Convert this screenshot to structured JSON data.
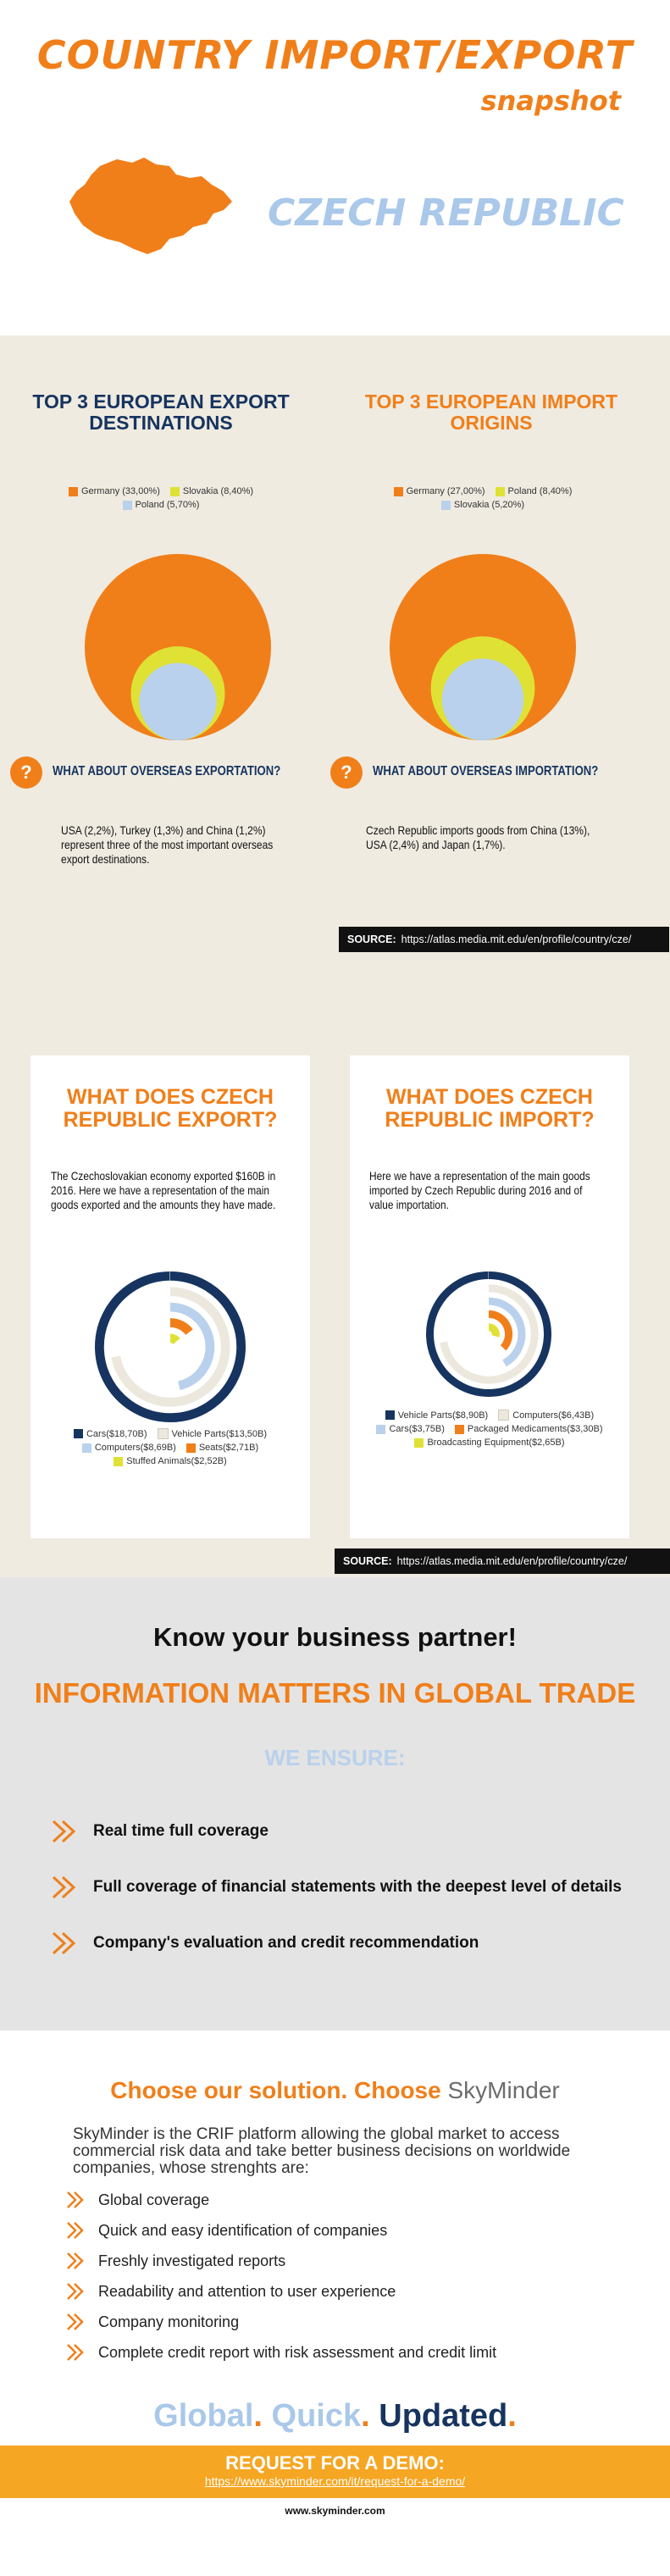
{
  "header": {
    "title_line1": "COUNTRY IMPORT/EXPORT",
    "title_line2": "snapshot",
    "country": "CZECH REPUBLIC"
  },
  "colors": {
    "orange": "#f07f1a",
    "navy": "#16345f",
    "light_blue": "#a9c8ea",
    "yellow": "#dfe234",
    "beige": "#efebe1",
    "grey": "#e4e4e4"
  },
  "export_destinations": {
    "title": "TOP 3 EUROPEAN EXPORT DESTINATIONS",
    "legend": [
      {
        "label": "Germany (33,00%)",
        "value": 33.0,
        "color": "#f07f1a"
      },
      {
        "label": "Slovakia (8,40%)",
        "value": 8.4,
        "color": "#dfe234"
      },
      {
        "label": "Poland (5,70%)",
        "value": 5.7,
        "color": "#b9d1ec"
      }
    ]
  },
  "import_origins": {
    "title": "TOP 3 EUROPEAN IMPORT ORIGINS",
    "legend": [
      {
        "label": "Germany (27,00%)",
        "value": 27.0,
        "color": "#f07f1a"
      },
      {
        "label": "Poland (8,40%)",
        "value": 8.4,
        "color": "#dfe234"
      },
      {
        "label": "Slovakia (5,20%)",
        "value": 5.2,
        "color": "#b9d1ec"
      }
    ]
  },
  "overseas_export": {
    "question": "WHAT ABOUT OVERSEAS EXPORTATION?",
    "text": "USA (2,2%), Turkey (1,3%) and China (1,2%) represent three of the most important overseas export destinations."
  },
  "overseas_import": {
    "question": "WHAT ABOUT OVERSEAS IMPORTATION?",
    "text": "Czech Republic imports goods from China (13%), USA (2,4%) and Japan (1,7%)."
  },
  "source": {
    "label": "SOURCE:",
    "url": "https://atlas.media.mit.edu/en/profile/country/cze/"
  },
  "export_card": {
    "title": "WHAT DOES CZECH REPUBLIC EXPORT?",
    "text": "The Czechoslovakian economy exported $160B in 2016. Here we have a representation of the main goods exported and the amounts they have made.",
    "legend": [
      {
        "label": "Cars($18,70B)",
        "value": 18.7,
        "color": "#16345f"
      },
      {
        "label": "Vehicle Parts($13,50B)",
        "value": 13.5,
        "color": "#ece8de"
      },
      {
        "label": "Computers($8,69B)",
        "value": 8.69,
        "color": "#b9d1ec"
      },
      {
        "label": "Seats($2,71B)",
        "value": 2.71,
        "color": "#f07f1a"
      },
      {
        "label": "Stuffed Animals($2,52B)",
        "value": 2.52,
        "color": "#dfe234"
      }
    ]
  },
  "import_card": {
    "title": "WHAT DOES CZECH REPUBLIC IMPORT?",
    "text": "Here we have a representation of the main goods imported by Czech Republic during 2016 and of value importation.",
    "legend": [
      {
        "label": "Vehicle Parts($8,90B)",
        "value": 8.9,
        "color": "#16345f"
      },
      {
        "label": "Computers($6,43B)",
        "value": 6.43,
        "color": "#ece8de"
      },
      {
        "label": "Cars($3,75B)",
        "value": 3.75,
        "color": "#b9d1ec"
      },
      {
        "label": "Packaged Medicaments($3,30B)",
        "value": 3.3,
        "color": "#f07f1a"
      },
      {
        "label": "Broadcasting Equipment($2,65B)",
        "value": 2.65,
        "color": "#dfe234"
      }
    ]
  },
  "partner": {
    "heading": "Know your business partner!",
    "subheading": "INFORMATION MATTERS IN GLOBAL TRADE",
    "ensure_title": "WE ENSURE:",
    "ensure_items": [
      "Real time full coverage",
      "Full coverage of financial statements with the deepest level of details",
      "Company's evaluation and credit recommendation"
    ]
  },
  "solution": {
    "choose_text": "Choose our solution. Choose",
    "brand": "SkyMinder",
    "intro": "SkyMinder is the CRIF platform allowing the global market to access commercial risk data and take better business decisions on worldwide companies, whose strenghts are:",
    "features": [
      "Global coverage",
      "Quick and easy identification of companies",
      "Freshly investigated reports",
      "Readability and attention to user experience",
      "Company monitoring",
      "Complete credit report with risk assessment and credit limit"
    ],
    "tagline_1": "Global",
    "tagline_2": "Quick",
    "tagline_3": "Updated",
    "tagline_dot": "."
  },
  "demo": {
    "title": "REQUEST FOR A DEMO:",
    "url": "https://www.skyminder.com/it/request-for-a-demo/",
    "site": "www.skyminder.com"
  }
}
